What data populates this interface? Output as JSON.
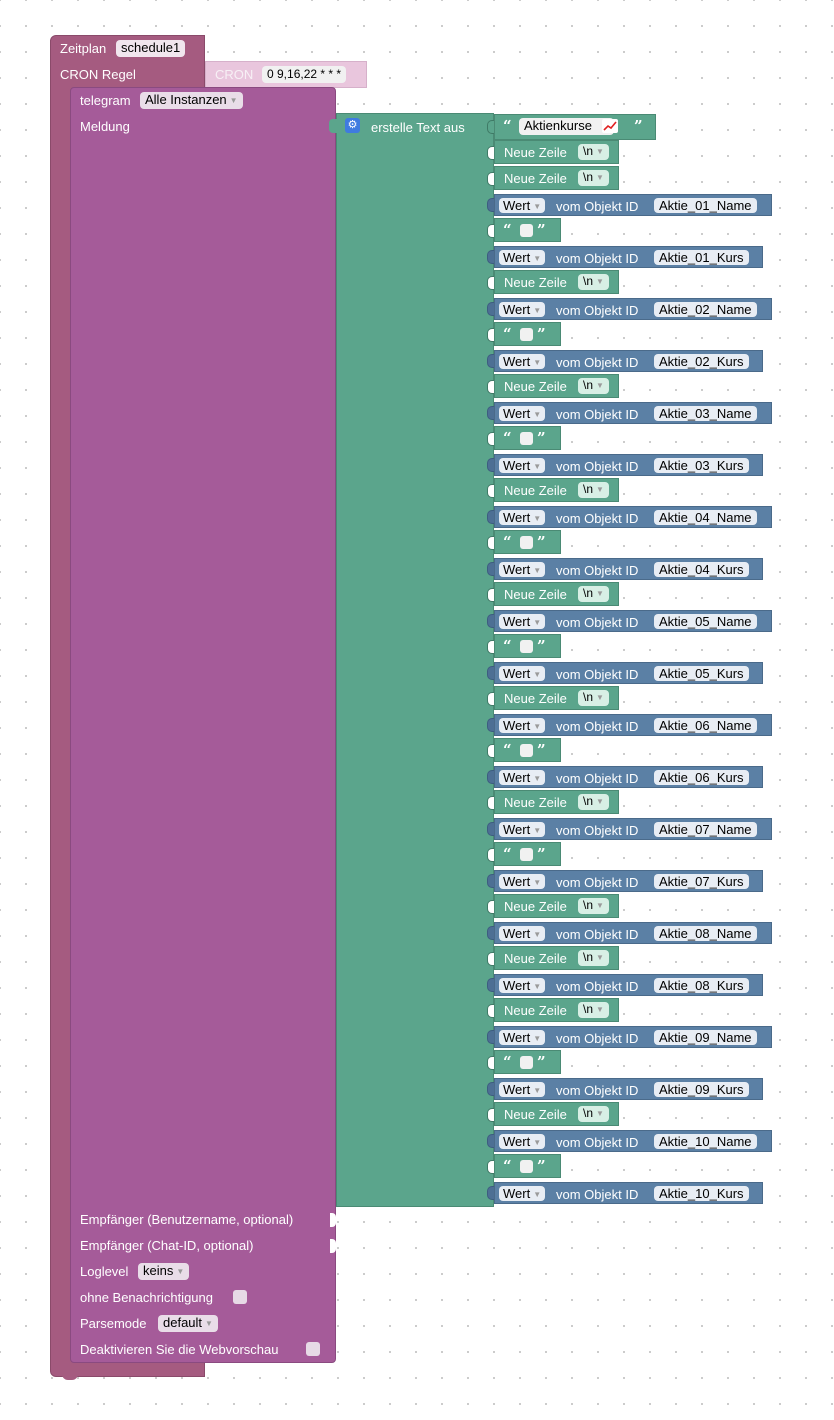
{
  "schedule": {
    "title": "Zeitplan",
    "name": "schedule1",
    "cron_label": "CRON Regel",
    "cron_block_label": "CRON",
    "cron_value": "0 9,16,22 * * *"
  },
  "telegram": {
    "label": "telegram",
    "instance": "Alle Instanzen",
    "message_label": "Meldung",
    "recipient_user": "Empfänger (Benutzername, optional)",
    "recipient_chat": "Empfänger (Chat-ID, optional)",
    "loglevel_label": "Loglevel",
    "loglevel_value": "keins",
    "no_notification_label": "ohne Benachrichtigung",
    "parsemode_label": "Parsemode",
    "parsemode_value": "default",
    "disable_preview_label": "Deaktivieren Sie die Webvorschau"
  },
  "text_join": {
    "label": "erstelle Text aus",
    "header_text": "Aktienkurse",
    "header_icon": "chart-up-icon"
  },
  "labels": {
    "newline": "Neue Zeile",
    "newline_value": "\\n",
    "wert": "Wert",
    "from_object": "vom Objekt ID"
  },
  "rows": [
    {
      "type": "newline"
    },
    {
      "type": "newline"
    },
    {
      "type": "wert",
      "id": "Aktie_01_Name"
    },
    {
      "type": "quote"
    },
    {
      "type": "wert",
      "id": "Aktie_01_Kurs"
    },
    {
      "type": "newline"
    },
    {
      "type": "wert",
      "id": "Aktie_02_Name"
    },
    {
      "type": "quote"
    },
    {
      "type": "wert",
      "id": "Aktie_02_Kurs"
    },
    {
      "type": "newline"
    },
    {
      "type": "wert",
      "id": "Aktie_03_Name"
    },
    {
      "type": "quote"
    },
    {
      "type": "wert",
      "id": "Aktie_03_Kurs"
    },
    {
      "type": "newline"
    },
    {
      "type": "wert",
      "id": "Aktie_04_Name"
    },
    {
      "type": "quote"
    },
    {
      "type": "wert",
      "id": "Aktie_04_Kurs"
    },
    {
      "type": "newline"
    },
    {
      "type": "wert",
      "id": "Aktie_05_Name"
    },
    {
      "type": "quote"
    },
    {
      "type": "wert",
      "id": "Aktie_05_Kurs"
    },
    {
      "type": "newline"
    },
    {
      "type": "wert",
      "id": "Aktie_06_Name"
    },
    {
      "type": "quote"
    },
    {
      "type": "wert",
      "id": "Aktie_06_Kurs"
    },
    {
      "type": "newline"
    },
    {
      "type": "wert",
      "id": "Aktie_07_Name"
    },
    {
      "type": "quote"
    },
    {
      "type": "wert",
      "id": "Aktie_07_Kurs"
    },
    {
      "type": "newline"
    },
    {
      "type": "wert",
      "id": "Aktie_08_Name"
    },
    {
      "type": "newline"
    },
    {
      "type": "wert",
      "id": "Aktie_08_Kurs"
    },
    {
      "type": "newline"
    },
    {
      "type": "wert",
      "id": "Aktie_09_Name"
    },
    {
      "type": "quote"
    },
    {
      "type": "wert",
      "id": "Aktie_09_Kurs"
    },
    {
      "type": "newline"
    },
    {
      "type": "wert",
      "id": "Aktie_10_Name"
    },
    {
      "type": "quote"
    },
    {
      "type": "wert",
      "id": "Aktie_10_Kurs"
    }
  ],
  "colors": {
    "schedule": "#a55b80",
    "cron": "#e9c6dd",
    "telegram": "#a55b99",
    "text": "#5ba58c",
    "sensor": "#5b80a5"
  }
}
